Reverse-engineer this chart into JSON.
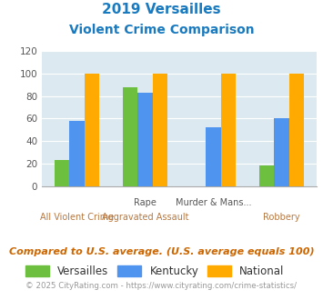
{
  "title_line1": "2019 Versailles",
  "title_line2": "Violent Crime Comparison",
  "title_color": "#1a7abf",
  "versailles_vals": [
    23,
    88,
    0,
    18
  ],
  "kentucky_vals": [
    58,
    83,
    52,
    60
  ],
  "national_vals": [
    100,
    100,
    100,
    100
  ],
  "versailles_color": "#6dbf3f",
  "kentucky_color": "#4f94ef",
  "national_color": "#ffaa00",
  "ylim": [
    0,
    120
  ],
  "yticks": [
    0,
    20,
    40,
    60,
    80,
    100,
    120
  ],
  "plot_bg": "#dce9f0",
  "top_labels": [
    "",
    "Rape",
    "Murder & Mans...",
    ""
  ],
  "bottom_labels": [
    "All Violent Crime",
    "Aggravated Assault",
    "",
    "Robbery"
  ],
  "footer_text": "Compared to U.S. average. (U.S. average equals 100)",
  "footer_color": "#cc6600",
  "credit_text": "© 2025 CityRating.com - https://www.cityrating.com/crime-statistics/",
  "credit_color": "#999999",
  "legend_labels": [
    "Versailles",
    "Kentucky",
    "National"
  ]
}
